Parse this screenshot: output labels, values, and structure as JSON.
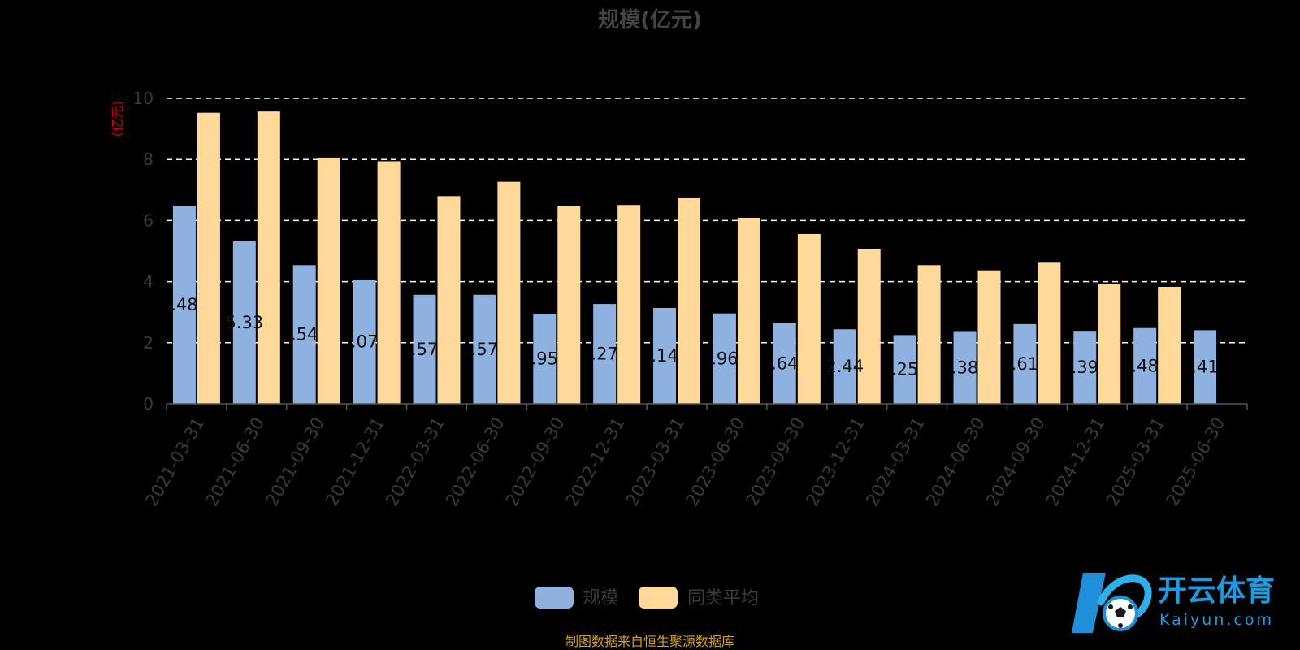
{
  "chart_data": {
    "type": "bar",
    "title": "规模(亿元)",
    "ylabel": "(亿元)",
    "ylim": [
      0,
      10
    ],
    "yticks": [
      0,
      2,
      4,
      6,
      8,
      10
    ],
    "grid": true,
    "legend_position": "bottom",
    "categories": [
      "2021-03-31",
      "2021-06-30",
      "2021-09-30",
      "2021-12-31",
      "2022-03-31",
      "2022-06-30",
      "2022-09-30",
      "2022-12-31",
      "2023-03-31",
      "2023-06-30",
      "2023-09-30",
      "2023-12-31",
      "2024-03-31",
      "2024-06-30",
      "2024-09-30",
      "2024-12-31",
      "2025-03-31",
      "2025-06-30"
    ],
    "series": [
      {
        "name": "规模",
        "color": "#8eb1e0",
        "values": [
          6.48,
          5.33,
          4.54,
          4.07,
          3.57,
          3.57,
          2.95,
          3.27,
          3.14,
          2.96,
          2.64,
          2.44,
          2.25,
          2.38,
          2.61,
          2.39,
          2.48,
          2.41
        ],
        "labels": [
          ".48",
          "5.33",
          ".54",
          ".07",
          ".57",
          ".57",
          ".95",
          ".27",
          ".14",
          ".96",
          ".64",
          "2.44",
          ".25",
          ".38",
          ".61",
          ".39",
          ".48",
          ".41"
        ]
      },
      {
        "name": "同类平均",
        "color": "#ffd99a",
        "values": [
          9.53,
          9.57,
          8.06,
          7.94,
          6.8,
          7.27,
          6.47,
          6.51,
          6.73,
          6.09,
          5.56,
          5.06,
          4.54,
          4.37,
          4.62,
          3.93,
          3.83,
          null
        ]
      }
    ]
  },
  "source_note": "制图数据来自恒生聚源数据库",
  "watermark": {
    "name_cn": "开云体育",
    "name_en": "Kaiyun.com",
    "icon": "kaiyun-soccer-ball-logo"
  }
}
